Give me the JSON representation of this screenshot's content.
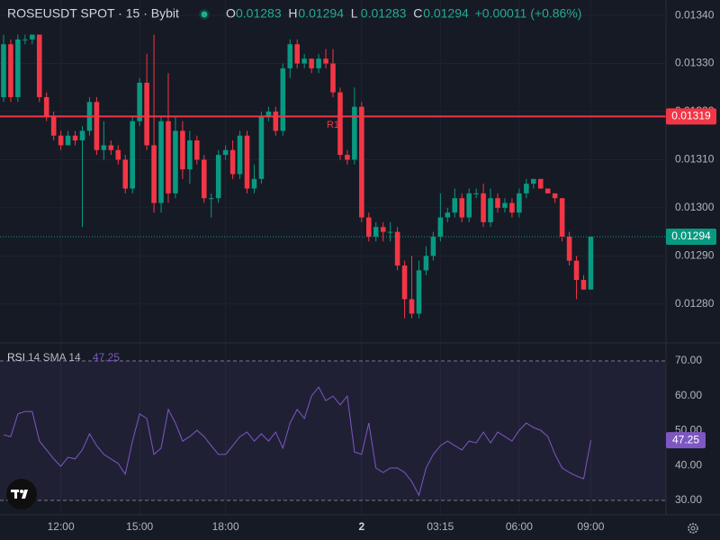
{
  "header": {
    "symbol": "ROSEUSDT SPOT · 15 · Bybit",
    "ohlc": [
      {
        "key": "O",
        "value": "0.01283"
      },
      {
        "key": "H",
        "value": "0.01294"
      },
      {
        "key": "L",
        "value": "0.01283"
      },
      {
        "key": "C",
        "value": "0.01294"
      }
    ],
    "change": "+0.00011 (+0.86%)"
  },
  "chart_data": [
    {
      "type": "candlestick",
      "up_color": "#089981",
      "down_color": "#f23645",
      "open": [
        0.01323,
        0.01334,
        0.01323,
        0.01335,
        0.01335,
        0.01336,
        0.01323,
        0.01319,
        0.01315,
        0.01313,
        0.01315,
        0.01314,
        0.01316,
        0.01322,
        0.01312,
        0.01313,
        0.01312,
        0.0131,
        0.01304,
        0.01318,
        0.01326,
        0.01313,
        0.01301,
        0.01318,
        0.01303,
        0.01316,
        0.01308,
        0.01314,
        0.0131,
        0.01302,
        0.01302,
        0.01311,
        0.01312,
        0.01307,
        0.01315,
        0.01304,
        0.01306,
        0.01319,
        0.0132,
        0.01316,
        0.01329,
        0.01334,
        0.0133,
        0.01331,
        0.01329,
        0.01331,
        0.0133,
        0.01324,
        0.01311,
        0.0131,
        0.01321,
        0.01298,
        0.01294,
        0.01296,
        0.01295,
        0.01295,
        0.01288,
        0.01281,
        0.01278,
        0.01287,
        0.0129,
        0.01294,
        0.01298,
        0.01299,
        0.01302,
        0.01298,
        0.01303,
        0.01303,
        0.01297,
        0.01302,
        0.013,
        0.01301,
        0.01299,
        0.01303,
        0.01305,
        0.01306,
        0.01304,
        0.01303,
        0.01302,
        0.01294,
        0.01289,
        0.01285,
        0.01283
      ],
      "high": [
        0.01336,
        0.01335,
        0.01336,
        0.01336,
        0.01336,
        0.01336,
        0.01324,
        0.0132,
        0.01316,
        0.01316,
        0.01316,
        0.01317,
        0.01323,
        0.01323,
        0.01318,
        0.01314,
        0.01313,
        0.01311,
        0.01319,
        0.01327,
        0.01332,
        0.01336,
        0.01319,
        0.01328,
        0.01319,
        0.01318,
        0.01316,
        0.01315,
        0.01311,
        0.01303,
        0.01312,
        0.01313,
        0.01314,
        0.01316,
        0.01316,
        0.01309,
        0.0132,
        0.01321,
        0.01321,
        0.0133,
        0.01335,
        0.01335,
        0.01332,
        0.01331,
        0.01332,
        0.01333,
        0.01333,
        0.01325,
        0.01312,
        0.01325,
        0.01322,
        0.01299,
        0.01297,
        0.01297,
        0.01297,
        0.01296,
        0.01289,
        0.0129,
        0.01289,
        0.01292,
        0.01295,
        0.01303,
        0.013,
        0.01304,
        0.01303,
        0.01304,
        0.01304,
        0.01305,
        0.01304,
        0.01303,
        0.01302,
        0.01302,
        0.01304,
        0.01306,
        0.01306,
        0.01306,
        0.01304,
        0.01303,
        0.01302,
        0.01295,
        0.0129,
        0.01286,
        0.01294
      ],
      "low": [
        0.01322,
        0.01322,
        0.01322,
        0.01334,
        0.01334,
        0.01322,
        0.01318,
        0.01314,
        0.01312,
        0.01313,
        0.01313,
        0.01296,
        0.01315,
        0.01311,
        0.0131,
        0.01311,
        0.01309,
        0.01303,
        0.01303,
        0.01317,
        0.01312,
        0.01299,
        0.01299,
        0.01301,
        0.01302,
        0.01306,
        0.01305,
        0.01309,
        0.01301,
        0.01298,
        0.01301,
        0.0131,
        0.01306,
        0.01306,
        0.01303,
        0.01303,
        0.01305,
        0.01318,
        0.01315,
        0.01315,
        0.01327,
        0.01329,
        0.01329,
        0.01328,
        0.01328,
        0.01329,
        0.01323,
        0.0131,
        0.01309,
        0.01309,
        0.01297,
        0.01293,
        0.01293,
        0.01293,
        0.01293,
        0.01287,
        0.01277,
        0.01277,
        0.01277,
        0.01286,
        0.01289,
        0.01293,
        0.01297,
        0.01298,
        0.01297,
        0.01297,
        0.01302,
        0.01296,
        0.01296,
        0.01299,
        0.01299,
        0.01298,
        0.01298,
        0.01302,
        0.01304,
        0.01304,
        0.01303,
        0.01301,
        0.01293,
        0.01288,
        0.01281,
        0.01283,
        0.01283
      ],
      "close": [
        0.01334,
        0.01323,
        0.01335,
        0.01335,
        0.01336,
        0.01323,
        0.01319,
        0.01315,
        0.01313,
        0.01315,
        0.01314,
        0.01316,
        0.01322,
        0.01312,
        0.01313,
        0.01312,
        0.0131,
        0.01304,
        0.01318,
        0.01326,
        0.01313,
        0.01301,
        0.01318,
        0.01303,
        0.01316,
        0.01308,
        0.01314,
        0.0131,
        0.01302,
        0.01302,
        0.01311,
        0.01312,
        0.01307,
        0.01315,
        0.01304,
        0.01306,
        0.01319,
        0.0132,
        0.01316,
        0.01329,
        0.01334,
        0.0133,
        0.01331,
        0.01329,
        0.01331,
        0.0133,
        0.01324,
        0.01311,
        0.0131,
        0.01321,
        0.01298,
        0.01294,
        0.01296,
        0.01295,
        0.01295,
        0.01288,
        0.01281,
        0.01278,
        0.01287,
        0.0129,
        0.01294,
        0.01298,
        0.01299,
        0.01302,
        0.01298,
        0.01303,
        0.01303,
        0.01297,
        0.01302,
        0.013,
        0.01301,
        0.01299,
        0.01303,
        0.01305,
        0.01306,
        0.01304,
        0.01303,
        0.01302,
        0.01294,
        0.01289,
        0.01285,
        0.01283,
        0.01294
      ],
      "xlim": [
        -0.5,
        92.5
      ],
      "xticks": [
        {
          "value": 8,
          "label": "12:00"
        },
        {
          "value": 19,
          "label": "15:00"
        },
        {
          "value": 31,
          "label": "18:00"
        },
        {
          "value": 50,
          "label": "2"
        },
        {
          "value": 61,
          "label": "03:15"
        },
        {
          "value": 72,
          "label": "06:00"
        },
        {
          "value": 82,
          "label": "09:00"
        }
      ],
      "ylim": [
        0.012721,
        0.013432
      ],
      "yticks": [
        {
          "value": 0.0134,
          "label": "0.01340"
        },
        {
          "value": 0.0133,
          "label": "0.01330"
        },
        {
          "value": 0.0132,
          "label": "0.01320"
        },
        {
          "value": 0.0131,
          "label": "0.01310"
        },
        {
          "value": 0.013,
          "label": "0.01300"
        },
        {
          "value": 0.0129,
          "label": "0.01290"
        },
        {
          "value": 0.0128,
          "label": "0.01280"
        }
      ],
      "resistance": {
        "label": "R1",
        "value": 0.01319,
        "color": "#f23645"
      },
      "last_price": 0.01294,
      "grid": true
    },
    {
      "type": "line",
      "title": "RSI",
      "params": "14 SMA 14",
      "color": "#7e57c2",
      "values": [
        48.8,
        48.3,
        54.8,
        55.5,
        55.5,
        47.0,
        44.5,
        41.9,
        39.8,
        42.4,
        41.9,
        44.5,
        49.1,
        45.7,
        43.2,
        41.9,
        40.6,
        37.5,
        47.0,
        54.8,
        53.5,
        43.2,
        45.0,
        56.1,
        52.2,
        47.0,
        48.3,
        50.1,
        48.3,
        45.7,
        43.2,
        43.2,
        45.7,
        48.3,
        49.6,
        47.0,
        49.1,
        47.0,
        49.6,
        45.0,
        52.2,
        56.1,
        53.5,
        59.9,
        62.5,
        58.6,
        59.9,
        57.4,
        59.9,
        43.9,
        43.2,
        52.2,
        39.3,
        38.0,
        39.3,
        39.3,
        38.0,
        35.4,
        31.5,
        39.3,
        43.2,
        45.7,
        47.0,
        45.7,
        44.5,
        47.0,
        46.5,
        49.6,
        46.5,
        49.6,
        48.3,
        47.0,
        50.1,
        52.2,
        50.9,
        50.1,
        48.3,
        43.2,
        39.3,
        38.0,
        37.0,
        36.2,
        47.25
      ],
      "ylim": [
        26.4,
        74.9
      ],
      "yticks": [
        {
          "value": 70,
          "label": "70.00"
        },
        {
          "value": 60,
          "label": "60.00"
        },
        {
          "value": 50,
          "label": "50.00"
        },
        {
          "value": 40,
          "label": "40.00"
        },
        {
          "value": 30,
          "label": "30.00"
        }
      ],
      "band": [
        30,
        70
      ]
    }
  ]
}
